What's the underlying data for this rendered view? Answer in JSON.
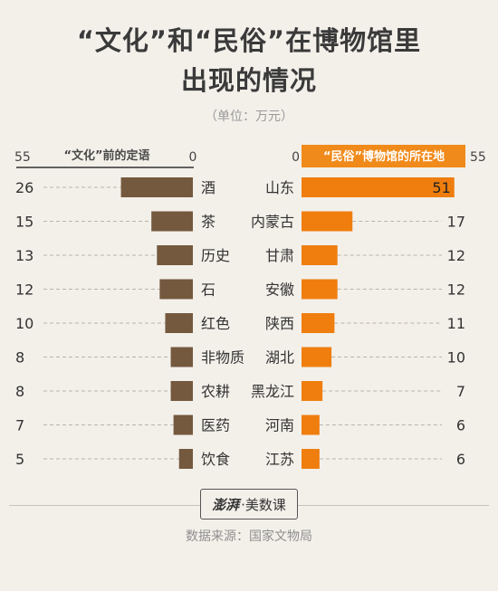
{
  "title": {
    "line1": "“文化”和“民俗”在博物馆里",
    "line2": "出现的情况"
  },
  "unit": "（单位：万元）",
  "colors": {
    "left_bar": "#74593f",
    "right_bar": "#ef7e0e",
    "header_bg": "#f08a1a",
    "dash": "#b9b4ab"
  },
  "chart_data": [
    {
      "type": "bar",
      "orientation": "horizontal",
      "direction": "right-to-left",
      "title": "“文化”前的定语",
      "axis_min_label": "0",
      "axis_max_label": "55",
      "xlim": [
        0,
        55
      ],
      "categories": [
        "酒",
        "茶",
        "历史",
        "石",
        "红色",
        "非物质",
        "农耕",
        "医药",
        "饮食"
      ],
      "values": [
        26,
        15,
        13,
        12,
        10,
        8,
        8,
        7,
        5
      ]
    },
    {
      "type": "bar",
      "orientation": "horizontal",
      "direction": "left-to-right",
      "title": "“民俗”博物馆的所在地",
      "axis_min_label": "0",
      "axis_max_label": "55",
      "xlim": [
        0,
        55
      ],
      "categories": [
        "山东",
        "内蒙古",
        "甘肃",
        "安徽",
        "陕西",
        "湖北",
        "黑龙江",
        "河南",
        "江苏"
      ],
      "values": [
        51,
        17,
        12,
        12,
        11,
        10,
        7,
        6,
        6
      ]
    }
  ],
  "footer": {
    "logo_brand": "澎湃",
    "logo_sub": "·美数课",
    "source": "数据来源：国家文物局"
  }
}
